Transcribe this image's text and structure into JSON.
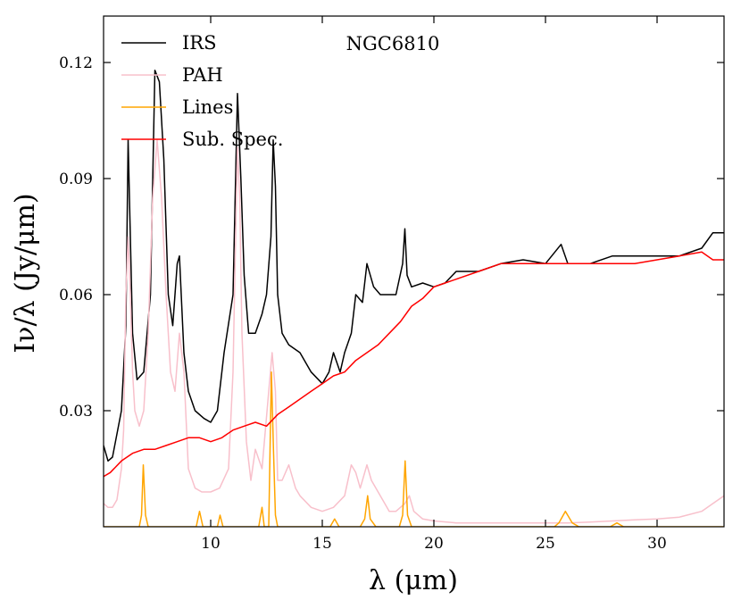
{
  "chart_data": {
    "type": "line",
    "title": "NGC6810",
    "xlabel": "λ (μm)",
    "ylabel": "Iν/λ (Jy/μm)",
    "xlim": [
      5.2,
      33.0
    ],
    "ylim": [
      0.0,
      0.132
    ],
    "xticks": [
      10,
      15,
      20,
      25,
      30
    ],
    "xtick_labels": [
      "10",
      "15",
      "20",
      "25",
      "30"
    ],
    "yticks": [
      0.03,
      0.06,
      0.09,
      0.12
    ],
    "ytick_labels": [
      "0.03",
      "0.06",
      "0.09",
      "0.12"
    ],
    "grid": false,
    "legend_position": "top-left",
    "series": [
      {
        "name": "IRS",
        "color": "#000000",
        "x": [
          5.2,
          5.4,
          5.6,
          5.8,
          6.0,
          6.2,
          6.3,
          6.5,
          6.7,
          7.0,
          7.3,
          7.5,
          7.7,
          7.9,
          8.1,
          8.3,
          8.5,
          8.6,
          8.8,
          9.0,
          9.3,
          9.7,
          10.0,
          10.3,
          10.6,
          11.0,
          11.2,
          11.35,
          11.5,
          11.7,
          12.0,
          12.3,
          12.5,
          12.7,
          12.8,
          12.9,
          13.0,
          13.2,
          13.5,
          14.0,
          14.5,
          15.0,
          15.3,
          15.5,
          15.8,
          16.0,
          16.3,
          16.5,
          16.8,
          17.0,
          17.3,
          17.6,
          17.9,
          18.3,
          18.6,
          18.7,
          18.8,
          19.0,
          19.5,
          20.0,
          20.5,
          21.0,
          22.0,
          23.0,
          24.0,
          25.0,
          25.7,
          26.0,
          27.0,
          28.0,
          29.0,
          30.0,
          31.0,
          32.0,
          32.5,
          33.0
        ],
        "values": [
          0.021,
          0.017,
          0.018,
          0.024,
          0.03,
          0.052,
          0.1,
          0.05,
          0.038,
          0.04,
          0.06,
          0.118,
          0.115,
          0.095,
          0.06,
          0.052,
          0.068,
          0.07,
          0.045,
          0.035,
          0.03,
          0.028,
          0.027,
          0.03,
          0.045,
          0.06,
          0.112,
          0.09,
          0.065,
          0.05,
          0.05,
          0.055,
          0.06,
          0.075,
          0.1,
          0.088,
          0.06,
          0.05,
          0.047,
          0.045,
          0.04,
          0.037,
          0.04,
          0.045,
          0.04,
          0.045,
          0.05,
          0.06,
          0.058,
          0.068,
          0.062,
          0.06,
          0.06,
          0.06,
          0.068,
          0.077,
          0.065,
          0.062,
          0.063,
          0.062,
          0.063,
          0.066,
          0.066,
          0.068,
          0.069,
          0.068,
          0.073,
          0.068,
          0.068,
          0.07,
          0.07,
          0.07,
          0.07,
          0.072,
          0.076,
          0.076
        ]
      },
      {
        "name": "PAH",
        "color": "#f8c0cb",
        "x": [
          5.2,
          5.4,
          5.6,
          5.8,
          6.0,
          6.1,
          6.2,
          6.3,
          6.4,
          6.5,
          6.6,
          6.8,
          7.0,
          7.2,
          7.4,
          7.6,
          7.8,
          8.0,
          8.2,
          8.4,
          8.6,
          8.8,
          9.0,
          9.3,
          9.6,
          10.0,
          10.4,
          10.8,
          11.0,
          11.1,
          11.2,
          11.3,
          11.4,
          11.6,
          11.8,
          12.0,
          12.3,
          12.6,
          12.75,
          12.9,
          13.0,
          13.2,
          13.5,
          13.8,
          14.0,
          14.5,
          15.0,
          15.5,
          16.0,
          16.3,
          16.5,
          16.7,
          17.0,
          17.2,
          17.5,
          17.8,
          18.0,
          18.3,
          18.5,
          18.7,
          18.9,
          19.1,
          19.5,
          20.0,
          21.0,
          22.0,
          23.0,
          24.0,
          25.0,
          26.0,
          27.0,
          28.0,
          29.0,
          30.0,
          31.0,
          32.0,
          32.5,
          33.0
        ],
        "values": [
          0.006,
          0.005,
          0.005,
          0.007,
          0.015,
          0.025,
          0.06,
          0.075,
          0.06,
          0.04,
          0.03,
          0.026,
          0.03,
          0.05,
          0.085,
          0.1,
          0.085,
          0.06,
          0.04,
          0.035,
          0.05,
          0.04,
          0.015,
          0.01,
          0.009,
          0.009,
          0.01,
          0.015,
          0.04,
          0.07,
          0.098,
          0.085,
          0.05,
          0.022,
          0.012,
          0.02,
          0.015,
          0.035,
          0.045,
          0.035,
          0.012,
          0.012,
          0.016,
          0.01,
          0.008,
          0.005,
          0.004,
          0.005,
          0.008,
          0.016,
          0.014,
          0.01,
          0.016,
          0.012,
          0.009,
          0.006,
          0.004,
          0.004,
          0.005,
          0.006,
          0.008,
          0.004,
          0.002,
          0.0015,
          0.001,
          0.001,
          0.001,
          0.001,
          0.001,
          0.001,
          0.0012,
          0.0015,
          0.0018,
          0.002,
          0.0025,
          0.004,
          0.006,
          0.008
        ]
      },
      {
        "name": "Lines",
        "color": "#ffa500",
        "x": [
          5.2,
          6.8,
          6.9,
          6.98,
          7.08,
          7.2,
          9.35,
          9.5,
          9.65,
          10.3,
          10.42,
          10.55,
          12.15,
          12.3,
          12.4,
          12.6,
          12.72,
          12.81,
          12.9,
          13.0,
          15.35,
          15.55,
          15.75,
          16.7,
          16.9,
          17.03,
          17.15,
          17.4,
          18.45,
          18.6,
          18.71,
          18.82,
          19.0,
          25.4,
          25.6,
          25.89,
          26.2,
          26.5,
          27.9,
          28.2,
          28.5,
          33.0
        ],
        "values": [
          0.0,
          0.0,
          0.003,
          0.016,
          0.003,
          0.0,
          0.0,
          0.004,
          0.0,
          0.0,
          0.003,
          0.0,
          0.0,
          0.005,
          0.0,
          0.0,
          0.04,
          0.02,
          0.003,
          0.0,
          0.0,
          0.002,
          0.0,
          0.0,
          0.002,
          0.008,
          0.002,
          0.0,
          0.0,
          0.003,
          0.017,
          0.003,
          0.0,
          0.0,
          0.001,
          0.004,
          0.001,
          0.0,
          0.0,
          0.001,
          0.0,
          0.0
        ]
      },
      {
        "name": "Sub. Spec.",
        "color": "#ff0000",
        "x": [
          5.2,
          5.5,
          6.0,
          6.5,
          7.0,
          7.5,
          8.0,
          8.5,
          9.0,
          9.5,
          10.0,
          10.5,
          11.0,
          11.5,
          12.0,
          12.5,
          13.0,
          13.5,
          14.0,
          14.5,
          15.0,
          15.5,
          16.0,
          16.5,
          17.0,
          17.5,
          18.0,
          18.5,
          19.0,
          19.5,
          20.0,
          20.5,
          21.0,
          22.0,
          23.0,
          24.0,
          25.0,
          26.0,
          27.0,
          28.0,
          29.0,
          30.0,
          31.0,
          32.0,
          32.5,
          33.0
        ],
        "values": [
          0.013,
          0.014,
          0.017,
          0.019,
          0.02,
          0.02,
          0.021,
          0.022,
          0.023,
          0.023,
          0.022,
          0.023,
          0.025,
          0.026,
          0.027,
          0.026,
          0.029,
          0.031,
          0.033,
          0.035,
          0.037,
          0.039,
          0.04,
          0.043,
          0.045,
          0.047,
          0.05,
          0.053,
          0.057,
          0.059,
          0.062,
          0.063,
          0.064,
          0.066,
          0.068,
          0.068,
          0.068,
          0.068,
          0.068,
          0.068,
          0.068,
          0.069,
          0.07,
          0.071,
          0.069,
          0.069
        ]
      }
    ]
  }
}
